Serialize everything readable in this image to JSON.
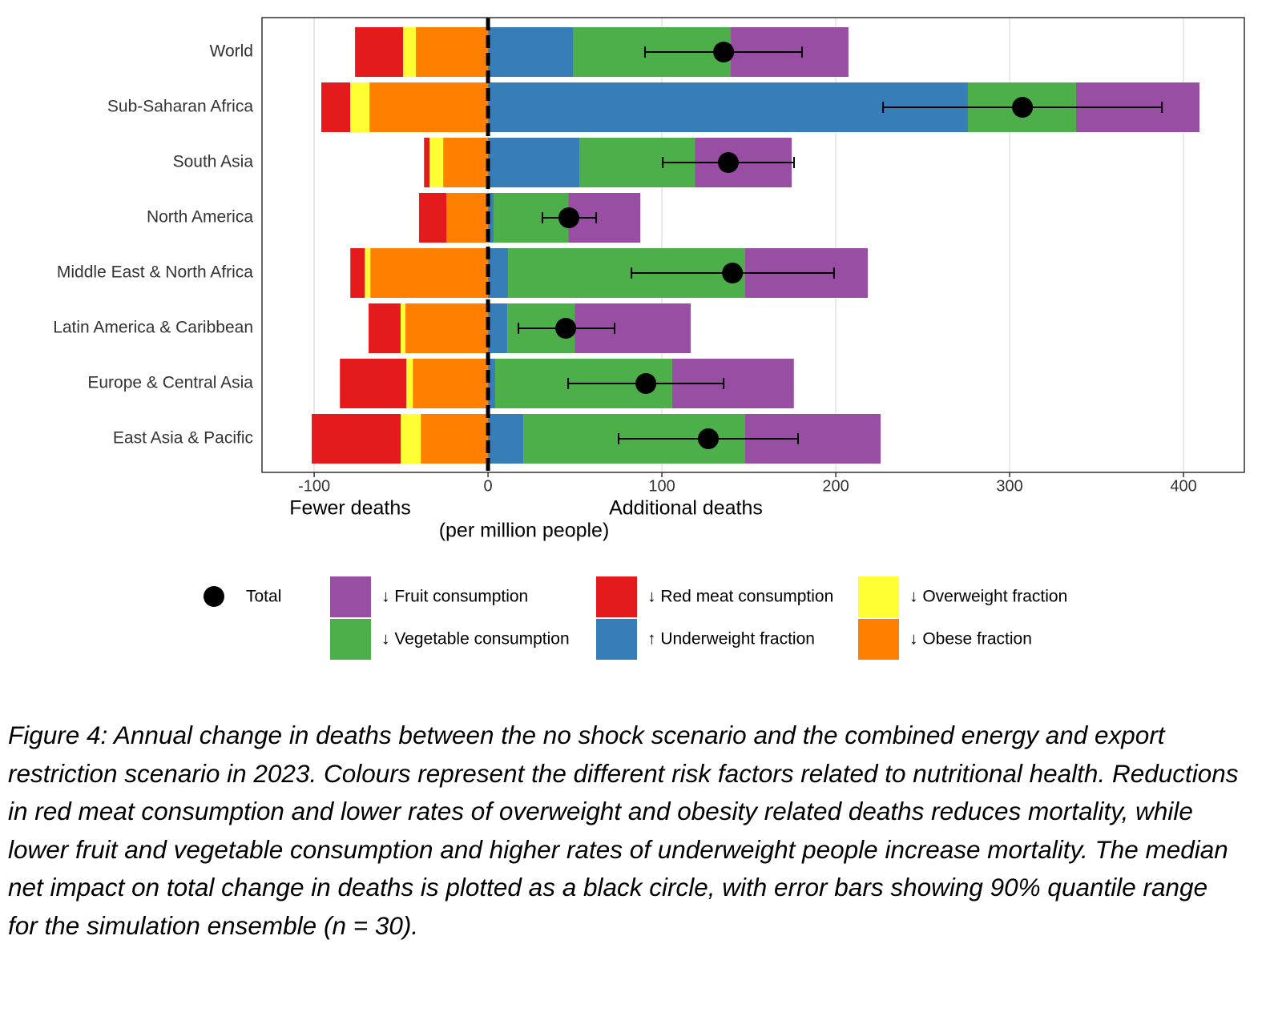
{
  "chart_data": {
    "type": "bar",
    "orientation": "horizontal",
    "stacked": true,
    "categories": [
      "World",
      "Sub-Saharan Africa",
      "South Asia",
      "North America",
      "Middle East & North Africa",
      "Latin America & Caribbean",
      "Europe & Central Asia",
      "East Asia & Pacific"
    ],
    "series": [
      {
        "name": "↓ Obese fraction",
        "color": "#ff7f00",
        "values": [
          -41.5,
          -68.2,
          -25.8,
          -24,
          -67.7,
          -47.5,
          -43.3,
          -38.7
        ]
      },
      {
        "name": "↓ Overweight fraction",
        "color": "#ffff33",
        "values": [
          -7.4,
          -11.1,
          -7.8,
          0,
          -3.2,
          -2.8,
          -3.7,
          -11.5
        ]
      },
      {
        "name": "↓ Red meat consumption",
        "color": "#e41a1c",
        "values": [
          -27.6,
          -16.6,
          -3.2,
          -15.7,
          -8.3,
          -18.4,
          -38.2,
          -51.2
        ]
      },
      {
        "name": "↑ Underweight fraction",
        "color": "#377eb8",
        "values": [
          48.8,
          276,
          52.5,
          3.2,
          11.5,
          11.1,
          4.1,
          20.3
        ]
      },
      {
        "name": "↓ Vegetable consumption",
        "color": "#4daf4a",
        "values": [
          90.8,
          62.2,
          66.4,
          42.9,
          136.4,
          38.7,
          101.8,
          127.6
        ]
      },
      {
        "name": "↓ Fruit consumption",
        "color": "#984ea3",
        "values": [
          67.7,
          71,
          55.8,
          41.5,
          70.5,
          66.8,
          70,
          77.9
        ]
      }
    ],
    "total": {
      "name": "Total",
      "color": "#000000",
      "values": [
        135.5,
        307.4,
        138.2,
        46.5,
        140.6,
        44.7,
        90.8,
        126.7
      ],
      "error_low": [
        90.3,
        227.2,
        100.5,
        31.3,
        82.5,
        17.5,
        46.1,
        75.1
      ],
      "error_high": [
        180.6,
        387.6,
        176,
        62.2,
        199,
        72.8,
        135.5,
        178.3
      ]
    },
    "xlim": [
      -130,
      435
    ],
    "xticks": [
      -100,
      0,
      100,
      200,
      300,
      400
    ],
    "grid": true,
    "xlabel_left": "Fewer deaths",
    "xlabel_right": "Additional deaths",
    "xlabel": "(per million people)"
  },
  "caption": "Figure 4: Annual change in deaths between the no shock scenario and the combined energy and export restriction scenario in 2023. Colours represent the different risk factors related to nutritional health. Reductions in red meat consumption and lower rates of overweight and obesity related deaths reduces mortality, while lower fruit and vegetable consumption and higher rates of underweight people increase mortality.  The median net impact on total change in deaths is plotted as a black circle, with error bars showing 90% quantile range for the simulation ensemble (n = 30)."
}
